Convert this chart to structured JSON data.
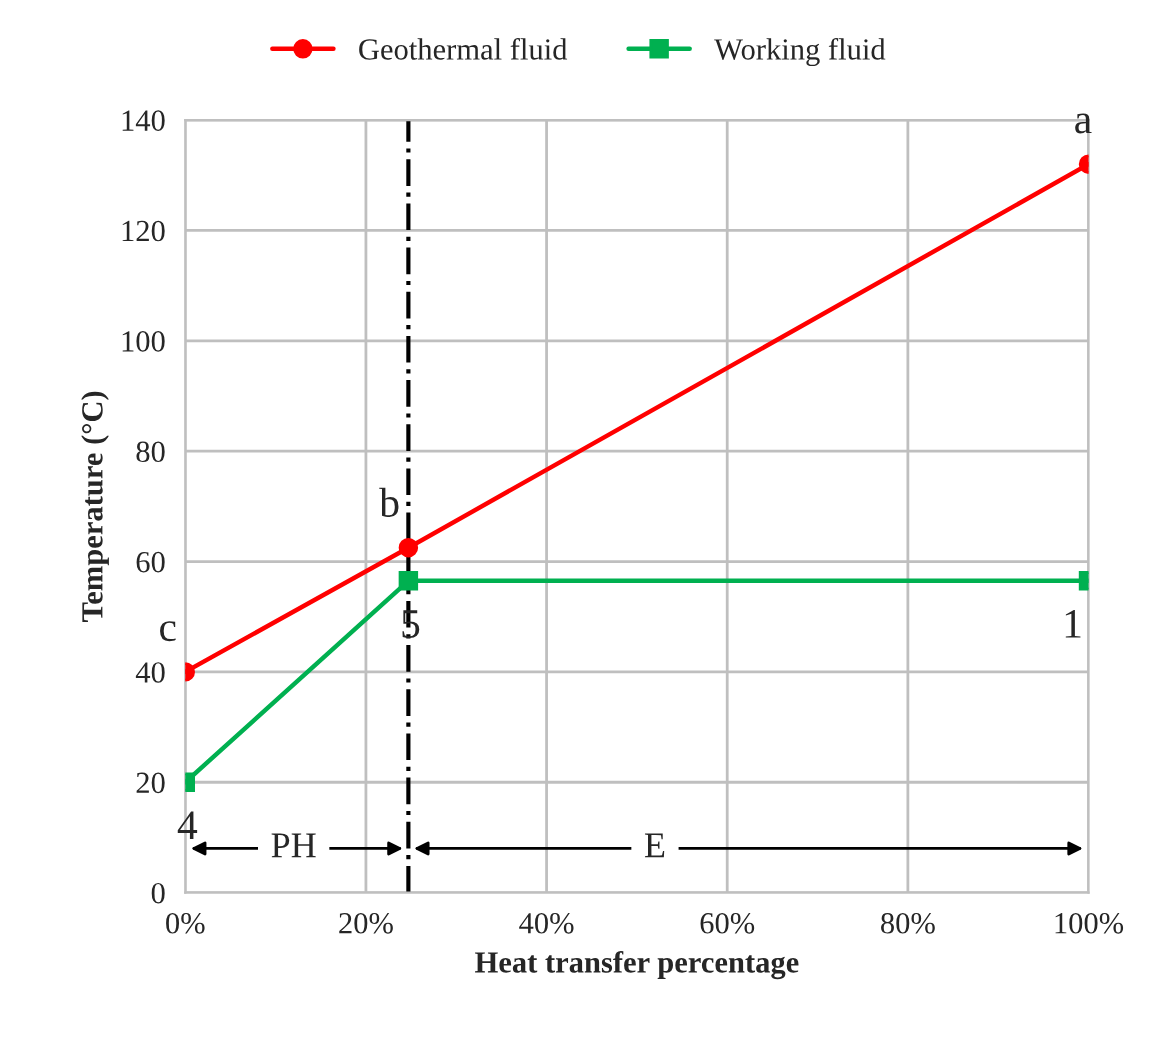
{
  "chart_data": {
    "type": "line",
    "xlabel": "Heat transfer percentage",
    "ylabel": "Temperature (°C)",
    "xlim": [
      0,
      100
    ],
    "xticks": [
      {
        "value": 0,
        "label": "0%"
      },
      {
        "value": 20,
        "label": "20%"
      },
      {
        "value": 40,
        "label": "40%"
      },
      {
        "value": 60,
        "label": "60%"
      },
      {
        "value": 80,
        "label": "80%"
      },
      {
        "value": 100,
        "label": "100%"
      }
    ],
    "ylim": [
      0,
      140
    ],
    "yticks": [
      0,
      20,
      40,
      60,
      80,
      100,
      120,
      140
    ],
    "grid": true,
    "legend": "top",
    "series": [
      {
        "name": "Geothermal fluid",
        "color": "#ff0000",
        "marker": "circle",
        "x": [
          0,
          24.7,
          100
        ],
        "values": [
          40,
          62.5,
          132
        ]
      },
      {
        "name": "Working fluid",
        "color": "#00b050",
        "marker": "square",
        "x": [
          0,
          24.7,
          100
        ],
        "values": [
          20,
          56.5,
          56.5
        ]
      }
    ],
    "ref_lines": [
      {
        "axis": "x",
        "value": 24.7,
        "color": "#000000",
        "line_style": "dashdot"
      }
    ],
    "annotations": [
      {
        "text": "a",
        "x": 100,
        "y": 132
      },
      {
        "text": "b",
        "x": 24.7,
        "y": 62.5
      },
      {
        "text": "c",
        "x": 0,
        "y": 40
      },
      {
        "text": "1",
        "x": 100,
        "y": 56.5
      },
      {
        "text": "5",
        "x": 24.7,
        "y": 56.5
      },
      {
        "text": "4",
        "x": 0,
        "y": 20
      },
      {
        "text": "PH",
        "x": 12,
        "y": 8
      },
      {
        "text": "E",
        "x": 52,
        "y": 8
      }
    ]
  }
}
